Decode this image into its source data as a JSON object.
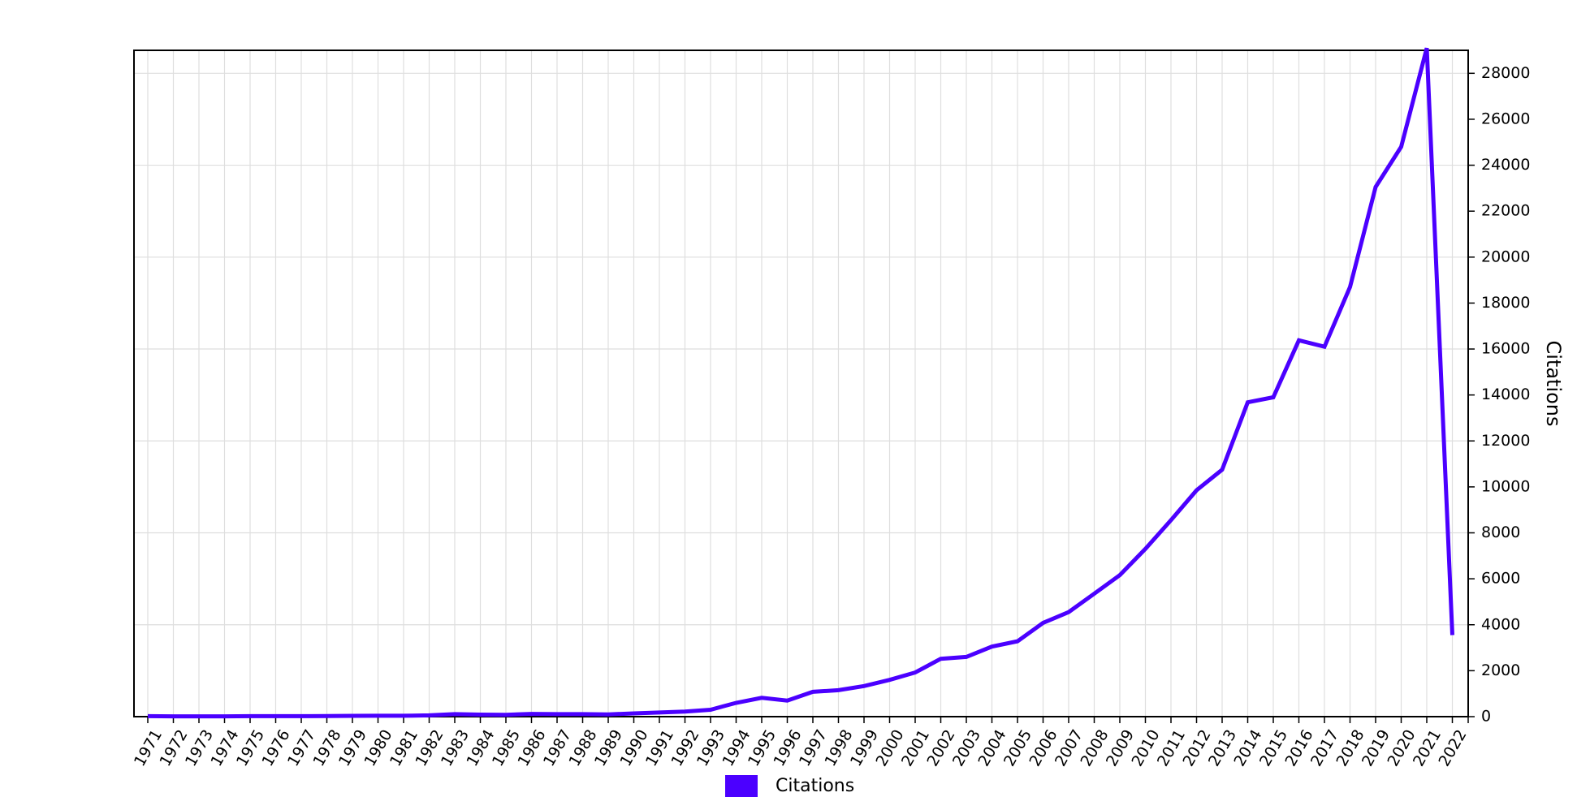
{
  "chart_data": {
    "type": "line",
    "title": "",
    "xlabel": "",
    "ylabel": "Citations",
    "x": [
      "1971",
      "1972",
      "1973",
      "1974",
      "1975",
      "1976",
      "1977",
      "1978",
      "1979",
      "1980",
      "1981",
      "1982",
      "1983",
      "1984",
      "1985",
      "1986",
      "1987",
      "1988",
      "1989",
      "1990",
      "1991",
      "1992",
      "1993",
      "1994",
      "1995",
      "1996",
      "1997",
      "1998",
      "1999",
      "2000",
      "2001",
      "2002",
      "2003",
      "2004",
      "2005",
      "2006",
      "2007",
      "2008",
      "2009",
      "2010",
      "2011",
      "2012",
      "2013",
      "2014",
      "2015",
      "2016",
      "2017",
      "2018",
      "2019",
      "2020",
      "2021",
      "2022"
    ],
    "series": [
      {
        "name": "Citations",
        "color": "#4b00ff",
        "values": [
          20,
          15,
          15,
          15,
          20,
          20,
          20,
          25,
          35,
          40,
          40,
          55,
          110,
          90,
          80,
          120,
          110,
          110,
          100,
          140,
          180,
          220,
          300,
          600,
          820,
          700,
          1080,
          1150,
          1330,
          1600,
          1920,
          2520,
          2600,
          3050,
          3280,
          4080,
          4550,
          5350,
          6160,
          7300,
          8550,
          9850,
          10750,
          13680,
          13900,
          16380,
          16100,
          18700,
          23050,
          24800,
          29100,
          3550
        ]
      }
    ],
    "ylim": [
      0,
      29000
    ],
    "yticks": [
      0,
      2000,
      4000,
      6000,
      8000,
      10000,
      12000,
      14000,
      16000,
      18000,
      20000,
      22000,
      24000,
      26000,
      28000
    ],
    "y_axis_side": "right",
    "grid": true,
    "legend": {
      "position": "bottom-center",
      "entries": [
        {
          "label": "Citations",
          "color": "#4b00ff"
        }
      ]
    }
  }
}
